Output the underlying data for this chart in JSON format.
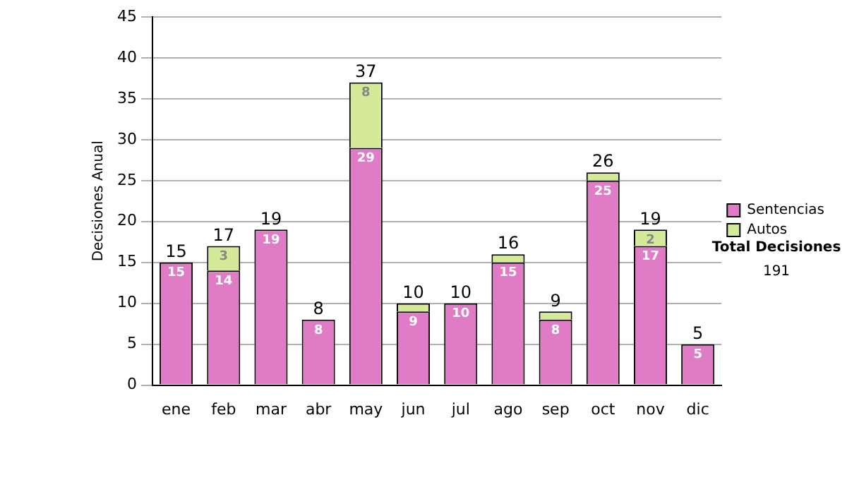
{
  "chart_data": {
    "type": "bar",
    "stacked": true,
    "ylabel": "Decisiones Anual",
    "categories": [
      "ene",
      "feb",
      "mar",
      "abr",
      "may",
      "jun",
      "jul",
      "ago",
      "sep",
      "oct",
      "nov",
      "dic"
    ],
    "series": [
      {
        "name": "Sentencias",
        "color": "#e07cc6",
        "values": [
          15,
          14,
          19,
          8,
          29,
          9,
          10,
          15,
          8,
          25,
          17,
          5
        ],
        "value_labels": [
          "15",
          "14",
          "19",
          "8",
          "29",
          "9",
          "10",
          "15",
          "8",
          "25",
          "17",
          "5"
        ]
      },
      {
        "name": "Autos",
        "color": "#d4ea98",
        "values": [
          0,
          3,
          0,
          0,
          8,
          1,
          0,
          1,
          1,
          1,
          2,
          0
        ],
        "value_labels": [
          null,
          "3",
          null,
          null,
          "8",
          null,
          null,
          null,
          null,
          null,
          "2",
          null
        ]
      }
    ],
    "totals": [
      "15",
      "17",
      "19",
      "8",
      "37",
      "10",
      "10",
      "16",
      "9",
      "26",
      "19",
      "5"
    ],
    "ylim": [
      0,
      45
    ],
    "yticks": [
      0,
      5,
      10,
      15,
      20,
      25,
      30,
      35,
      40,
      45
    ],
    "grid": "y",
    "legend": "right",
    "annotations": [
      "Total Decisiones",
      "191"
    ]
  }
}
